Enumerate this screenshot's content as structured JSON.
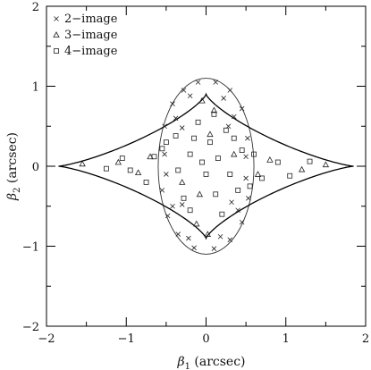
{
  "chart_data": {
    "type": "scatter",
    "title": "",
    "xlabel": {
      "base": "β",
      "sub": "1",
      "rest": " (arcsec)"
    },
    "ylabel": {
      "base": "β",
      "sub": "2",
      "rest": " (arcsec)"
    },
    "xlim": [
      -2,
      2
    ],
    "ylim": [
      -2,
      2
    ],
    "xticks": [
      "−2",
      "−1",
      "0",
      "1",
      "2"
    ],
    "yticks": [
      "−2",
      "−1",
      "0",
      "1",
      "2"
    ],
    "grid": false,
    "legend_position": "top-left",
    "legend": [
      {
        "marker": "cross",
        "label": "2−image"
      },
      {
        "marker": "triangle",
        "label": "3−image"
      },
      {
        "marker": "square",
        "label": "4−image"
      }
    ],
    "curves": {
      "radial_caustic_ellipse": {
        "semi_x": 0.6,
        "semi_y": 1.1
      },
      "tangential_caustic_astroid": {
        "x_cusp": 1.85,
        "y_cusp": 0.9,
        "exponent": 1.6
      }
    },
    "series": [
      {
        "name": "2−image",
        "marker": "cross",
        "points": [
          [
            0.52,
            0.35
          ],
          [
            0.45,
            0.72
          ],
          [
            0.3,
            0.95
          ],
          [
            0.12,
            1.05
          ],
          [
            -0.1,
            1.05
          ],
          [
            -0.28,
            0.95
          ],
          [
            -0.42,
            0.78
          ],
          [
            -0.52,
            0.5
          ],
          [
            -0.55,
            -0.3
          ],
          [
            -0.48,
            -0.62
          ],
          [
            -0.35,
            -0.85
          ],
          [
            -0.15,
            -1.02
          ],
          [
            0.1,
            -1.03
          ],
          [
            0.3,
            -0.92
          ],
          [
            0.45,
            -0.7
          ],
          [
            0.53,
            -0.4
          ],
          [
            0.35,
            0.62
          ],
          [
            -0.38,
            0.6
          ],
          [
            0.4,
            -0.55
          ],
          [
            -0.42,
            -0.5
          ],
          [
            0.22,
            0.85
          ],
          [
            -0.2,
            0.88
          ],
          [
            0.18,
            -0.88
          ],
          [
            -0.22,
            -0.9
          ],
          [
            0.5,
            0.12
          ],
          [
            -0.52,
            0.15
          ],
          [
            0.5,
            -0.15
          ],
          [
            -0.5,
            -0.1
          ],
          [
            0.28,
            0.5
          ],
          [
            -0.3,
            0.48
          ],
          [
            0.32,
            -0.45
          ],
          [
            -0.3,
            -0.48
          ]
        ]
      },
      {
        "name": "3−image",
        "marker": "triangle",
        "points": [
          [
            0.02,
            -0.85
          ],
          [
            -0.05,
            0.82
          ],
          [
            0.1,
            0.7
          ],
          [
            -0.12,
            -0.72
          ],
          [
            1.5,
            0.02
          ],
          [
            -1.55,
            0.03
          ],
          [
            1.2,
            -0.04
          ],
          [
            -1.1,
            0.05
          ],
          [
            0.8,
            0.08
          ],
          [
            -0.85,
            -0.08
          ],
          [
            0.05,
            0.4
          ],
          [
            -0.08,
            -0.35
          ],
          [
            0.35,
            0.15
          ],
          [
            -0.3,
            -0.2
          ],
          [
            0.65,
            -0.1
          ],
          [
            -0.7,
            0.12
          ]
        ]
      },
      {
        "name": "4−image",
        "marker": "square",
        "points": [
          [
            0.05,
            0.3
          ],
          [
            -0.2,
            0.15
          ],
          [
            0.3,
            -0.1
          ],
          [
            -0.35,
            -0.05
          ],
          [
            0.12,
            -0.35
          ],
          [
            -0.1,
            0.55
          ],
          [
            0.45,
            0.2
          ],
          [
            -0.5,
            0.3
          ],
          [
            0.25,
            0.45
          ],
          [
            -0.28,
            -0.4
          ],
          [
            0.6,
            0.15
          ],
          [
            -0.65,
            0.12
          ],
          [
            0.9,
            0.05
          ],
          [
            -0.95,
            -0.05
          ],
          [
            1.3,
            0.06
          ],
          [
            -1.25,
            -0.03
          ],
          [
            0.7,
            -0.15
          ],
          [
            -0.75,
            -0.2
          ],
          [
            0.0,
            -0.1
          ],
          [
            0.15,
            0.1
          ],
          [
            -0.05,
            0.05
          ],
          [
            0.35,
            0.35
          ],
          [
            -0.38,
            0.38
          ],
          [
            0.4,
            -0.3
          ],
          [
            -0.2,
            -0.55
          ],
          [
            0.1,
            0.65
          ],
          [
            1.05,
            -0.12
          ],
          [
            -1.05,
            0.1
          ],
          [
            0.55,
            -0.25
          ],
          [
            -0.55,
            0.22
          ],
          [
            0.2,
            -0.6
          ],
          [
            -0.15,
            0.35
          ]
        ]
      }
    ]
  }
}
